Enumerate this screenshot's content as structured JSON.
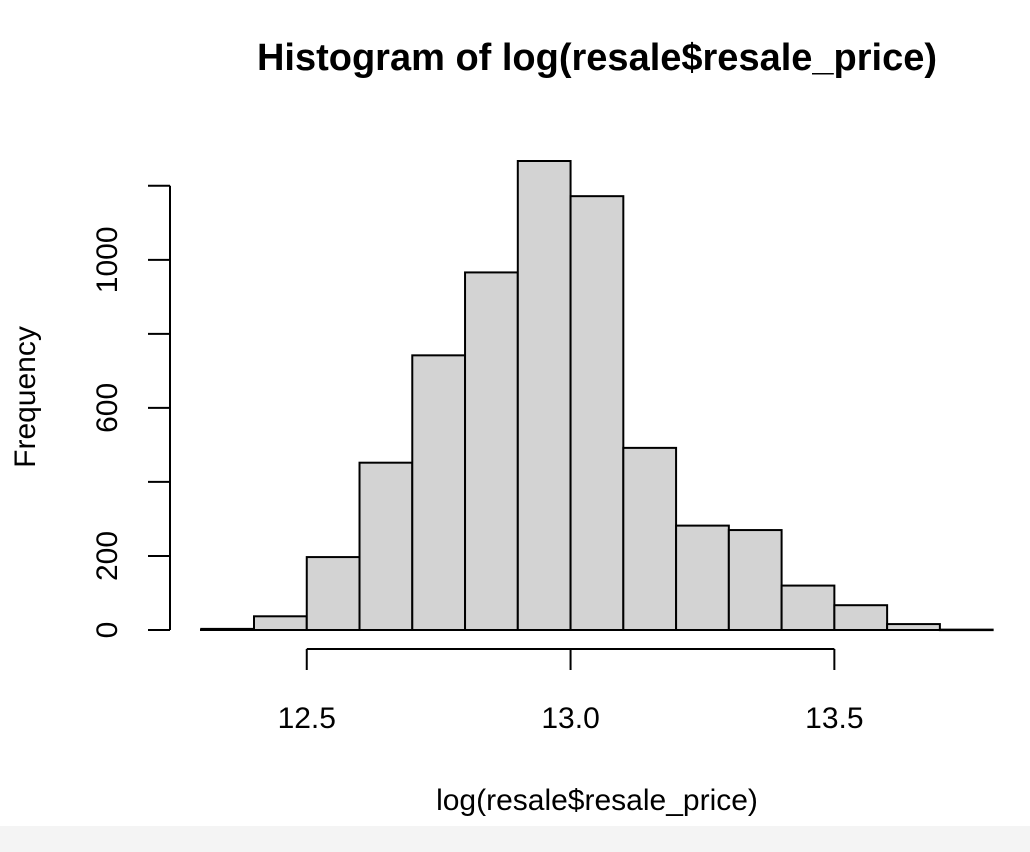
{
  "chart_data": {
    "type": "bar",
    "subtype": "histogram",
    "title": "Histogram of log(resale$resale_price)",
    "xlabel": "log(resale$resale_price)",
    "ylabel": "Frequency",
    "bins": [
      {
        "start": 12.3,
        "end": 12.4,
        "count": 3
      },
      {
        "start": 12.4,
        "end": 12.5,
        "count": 37
      },
      {
        "start": 12.5,
        "end": 12.6,
        "count": 197
      },
      {
        "start": 12.6,
        "end": 12.7,
        "count": 452
      },
      {
        "start": 12.7,
        "end": 12.8,
        "count": 742
      },
      {
        "start": 12.8,
        "end": 12.9,
        "count": 966
      },
      {
        "start": 12.9,
        "end": 13.0,
        "count": 1267
      },
      {
        "start": 13.0,
        "end": 13.1,
        "count": 1172
      },
      {
        "start": 13.1,
        "end": 13.2,
        "count": 492
      },
      {
        "start": 13.2,
        "end": 13.3,
        "count": 282
      },
      {
        "start": 13.3,
        "end": 13.4,
        "count": 270
      },
      {
        "start": 13.4,
        "end": 13.5,
        "count": 120
      },
      {
        "start": 13.5,
        "end": 13.6,
        "count": 67
      },
      {
        "start": 13.6,
        "end": 13.7,
        "count": 16
      },
      {
        "start": 13.7,
        "end": 13.8,
        "count": 1
      }
    ],
    "x_ticks": [
      12.5,
      13.0,
      13.5
    ],
    "x_tick_labels": [
      "12.5",
      "13.0",
      "13.5"
    ],
    "y_ticks": [
      0,
      200,
      400,
      600,
      800,
      1000,
      1200
    ],
    "y_tick_labels": [
      "0",
      "200",
      "",
      "600",
      "",
      "1000",
      ""
    ],
    "xlim": [
      12.3,
      13.8
    ],
    "ylim": [
      0,
      1267
    ],
    "grid": false,
    "colors": {
      "bar_fill": "#d3d3d3",
      "bar_stroke": "#000000"
    }
  }
}
